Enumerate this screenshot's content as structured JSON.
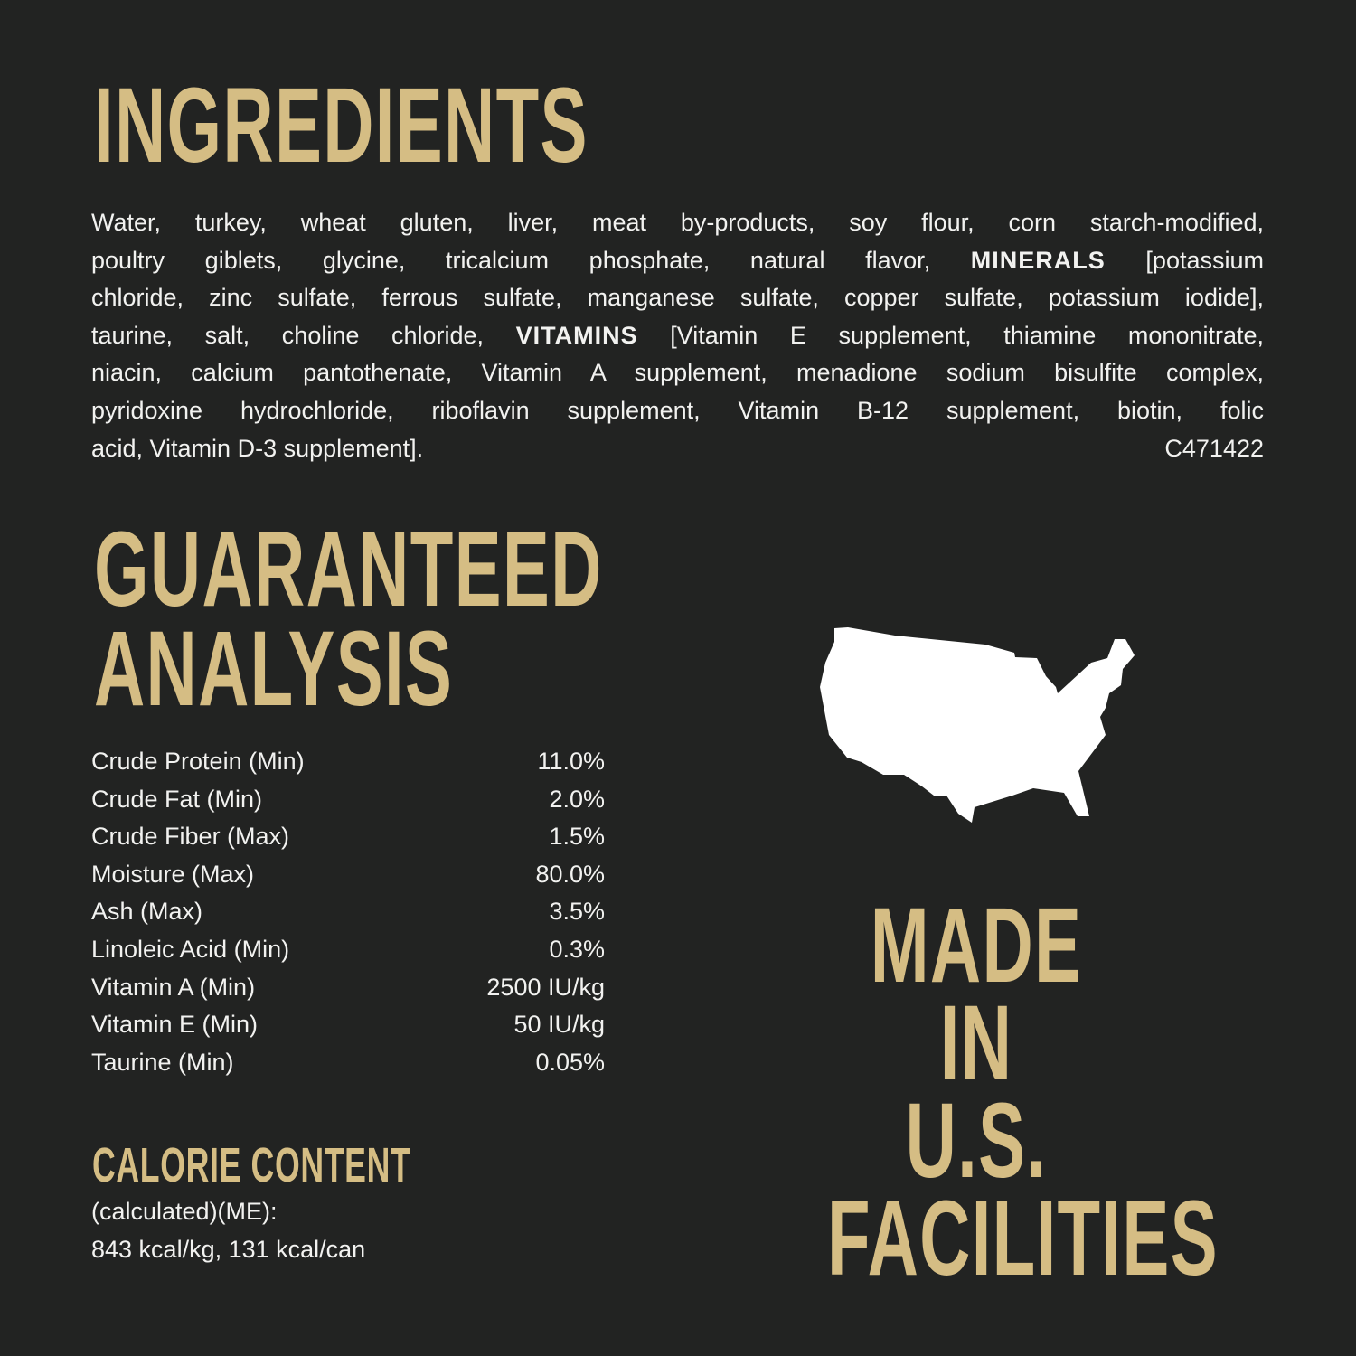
{
  "ingredients": {
    "heading": "INGREDIENTS",
    "lines": [
      [
        {
          "t": "Water, turkey, wheat gluten, liver, meat by-products, soy flour, corn starch-modified,",
          "b": false
        }
      ],
      [
        {
          "t": "poultry giblets, glycine, tricalcium phosphate, natural flavor, ",
          "b": false
        },
        {
          "t": "MINERALS",
          "b": true
        },
        {
          "t": " [potassium",
          "b": false
        }
      ],
      [
        {
          "t": "chloride, zinc sulfate, ferrous sulfate, manganese sulfate, copper sulfate, potassium iodide],",
          "b": false
        }
      ],
      [
        {
          "t": "taurine, salt, choline chloride, ",
          "b": false
        },
        {
          "t": "VITAMINS",
          "b": true
        },
        {
          "t": " [Vitamin E supplement, thiamine mononitrate,",
          "b": false
        }
      ],
      [
        {
          "t": "niacin, calcium pantothenate, Vitamin A supplement, menadione sodium bisulfite complex,",
          "b": false
        }
      ],
      [
        {
          "t": "pyridoxine hydrochloride, riboflavin supplement, Vitamin B-12 supplement, biotin, folic",
          "b": false
        }
      ]
    ],
    "last_line": "acid, Vitamin D-3 supplement].",
    "code": "C471422"
  },
  "analysis": {
    "heading_line1": "GUARANTEED",
    "heading_line2": "ANALYSIS",
    "rows": [
      {
        "label": "Crude Protein (Min)",
        "value": "11.0%"
      },
      {
        "label": "Crude Fat (Min)",
        "value": "2.0%"
      },
      {
        "label": "Crude Fiber (Max)",
        "value": "1.5%"
      },
      {
        "label": "Moisture (Max)",
        "value": "80.0%"
      },
      {
        "label": "Ash (Max)",
        "value": "3.5%"
      },
      {
        "label": "Linoleic Acid (Min)",
        "value": "0.3%"
      },
      {
        "label": "Vitamin A (Min)",
        "value": "2500 IU/kg"
      },
      {
        "label": "Vitamin E (Min)",
        "value": "50 IU/kg"
      },
      {
        "label": "Taurine (Min)",
        "value": "0.05%"
      }
    ]
  },
  "calorie": {
    "heading": "CALORIE CONTENT",
    "line1": "(calculated)(ME):",
    "line2": "843 kcal/kg, 131 kcal/can"
  },
  "made_in": {
    "icon": "usa-map-icon",
    "line1": "MADE IN",
    "line2": "U.S.",
    "line3": "FACILITIES"
  },
  "colors": {
    "background": "#222322",
    "gold": "#d5bd84",
    "text": "#f2f2f0"
  }
}
